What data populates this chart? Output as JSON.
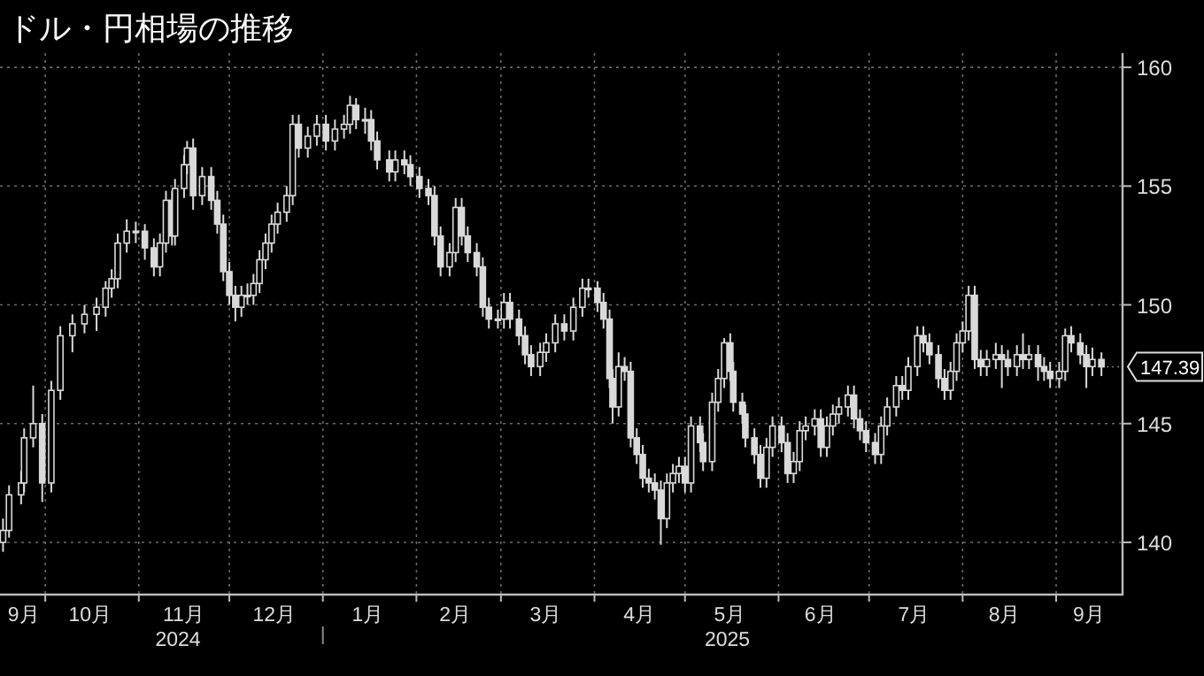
{
  "chart_data": {
    "type": "candlestick",
    "title": "ドル・円相場の推移",
    "color": "#d9d9d9",
    "x": [
      "2024-09-17",
      "2024-09-19",
      "2024-09-23",
      "2024-09-24",
      "2024-09-27",
      "2024-09-30",
      "2024-10-03",
      "2024-10-06",
      "2024-10-10",
      "2024-10-14",
      "2024-10-18",
      "2024-10-21",
      "2024-10-23",
      "2024-10-25",
      "2024-10-28",
      "2024-10-31",
      "2024-11-03",
      "2024-11-06",
      "2024-11-08",
      "2024-11-10",
      "2024-11-12",
      "2024-11-13",
      "2024-11-16",
      "2024-11-17",
      "2024-11-19",
      "2024-11-22",
      "2024-11-25",
      "2024-11-27",
      "2024-11-29",
      "2024-12-01",
      "2024-12-03",
      "2024-12-05",
      "2024-12-07",
      "2024-12-09",
      "2024-12-11",
      "2024-12-13",
      "2024-12-15",
      "2024-12-17",
      "2024-12-20",
      "2024-12-22",
      "2024-12-24",
      "2024-12-27",
      "2024-12-30",
      "2025-01-02",
      "2025-01-05",
      "2025-01-08",
      "2025-01-10",
      "2025-01-12",
      "2025-01-15",
      "2025-01-17",
      "2025-01-19",
      "2025-01-23",
      "2025-01-25",
      "2025-01-28",
      "2025-01-30",
      "2025-02-02",
      "2025-02-05",
      "2025-02-07",
      "2025-02-09",
      "2025-02-12",
      "2025-02-14",
      "2025-02-16",
      "2025-02-18",
      "2025-02-21",
      "2025-02-23",
      "2025-02-25",
      "2025-02-28",
      "2025-03-02",
      "2025-03-04",
      "2025-03-07",
      "2025-03-09",
      "2025-03-11",
      "2025-03-14",
      "2025-03-16",
      "2025-03-19",
      "2025-03-22",
      "2025-03-25",
      "2025-03-28",
      "2025-03-30",
      "2025-04-02",
      "2025-04-04",
      "2025-04-06",
      "2025-04-07",
      "2025-04-09",
      "2025-04-11",
      "2025-04-13",
      "2025-04-15",
      "2025-04-17",
      "2025-04-19",
      "2025-04-21",
      "2025-04-23",
      "2025-04-25",
      "2025-04-27",
      "2025-04-29",
      "2025-05-01",
      "2025-05-03",
      "2025-05-06",
      "2025-05-07",
      "2025-05-10",
      "2025-05-12",
      "2025-05-14",
      "2025-05-16",
      "2025-05-17",
      "2025-05-20",
      "2025-05-21",
      "2025-05-24",
      "2025-05-26",
      "2025-05-28",
      "2025-05-30",
      "2025-06-02",
      "2025-06-04",
      "2025-06-06",
      "2025-06-08",
      "2025-06-10",
      "2025-06-13",
      "2025-06-15",
      "2025-06-17",
      "2025-06-19",
      "2025-06-21",
      "2025-06-24",
      "2025-06-26",
      "2025-06-28",
      "2025-06-30",
      "2025-07-03",
      "2025-07-05",
      "2025-07-07",
      "2025-07-10",
      "2025-07-12",
      "2025-07-14",
      "2025-07-17",
      "2025-07-19",
      "2025-07-21",
      "2025-07-24",
      "2025-07-26",
      "2025-07-28",
      "2025-07-30",
      "2025-08-01",
      "2025-08-03",
      "2025-08-05",
      "2025-08-07",
      "2025-08-09",
      "2025-08-12",
      "2025-08-14",
      "2025-08-16",
      "2025-08-19",
      "2025-08-21",
      "2025-08-23",
      "2025-08-26",
      "2025-08-28",
      "2025-08-30",
      "2025-09-02",
      "2025-09-04",
      "2025-09-06",
      "2025-09-09",
      "2025-09-11",
      "2025-09-13",
      "2025-09-16"
    ],
    "ohlc": [
      [
        140.0,
        141.0,
        139.6,
        140.5
      ],
      [
        140.5,
        142.4,
        140.2,
        142.0
      ],
      [
        142.0,
        143.0,
        141.6,
        142.5
      ],
      [
        142.5,
        144.8,
        142.1,
        144.4
      ],
      [
        144.4,
        146.6,
        144.0,
        145.0
      ],
      [
        145.0,
        145.4,
        141.7,
        142.5
      ],
      [
        142.5,
        146.8,
        142.1,
        146.4
      ],
      [
        146.4,
        149.1,
        146.0,
        148.7
      ],
      [
        148.7,
        149.6,
        148.0,
        149.2
      ],
      [
        149.2,
        150.0,
        148.8,
        149.6
      ],
      [
        149.6,
        150.3,
        148.9,
        149.9
      ],
      [
        149.9,
        151.0,
        149.5,
        150.7
      ],
      [
        150.7,
        151.5,
        150.3,
        151.1
      ],
      [
        151.1,
        153.0,
        150.7,
        152.6
      ],
      [
        152.6,
        153.6,
        152.2,
        153.1
      ],
      [
        153.1,
        153.5,
        152.6,
        153.1
      ],
      [
        153.1,
        153.4,
        151.9,
        152.4
      ],
      [
        152.4,
        152.8,
        151.2,
        151.6
      ],
      [
        151.6,
        153.0,
        151.2,
        152.6
      ],
      [
        152.6,
        154.8,
        152.2,
        154.4
      ],
      [
        154.4,
        154.8,
        152.5,
        152.9
      ],
      [
        152.9,
        155.3,
        152.5,
        154.9
      ],
      [
        154.9,
        156.3,
        154.5,
        155.9
      ],
      [
        155.9,
        156.9,
        155.5,
        156.6
      ],
      [
        156.6,
        157.0,
        154.0,
        154.6
      ],
      [
        154.6,
        155.8,
        154.2,
        155.4
      ],
      [
        155.4,
        155.8,
        154.0,
        154.4
      ],
      [
        154.4,
        154.8,
        153.0,
        153.4
      ],
      [
        153.4,
        153.8,
        151.0,
        151.4
      ],
      [
        151.4,
        151.8,
        150.0,
        150.4
      ],
      [
        150.4,
        150.8,
        149.3,
        149.9
      ],
      [
        149.9,
        150.8,
        149.5,
        150.4
      ],
      [
        150.4,
        150.9,
        150.0,
        150.4
      ],
      [
        150.4,
        151.3,
        150.0,
        150.9
      ],
      [
        150.9,
        152.3,
        150.5,
        151.9
      ],
      [
        151.9,
        153.0,
        151.5,
        152.6
      ],
      [
        152.6,
        153.8,
        152.2,
        153.4
      ],
      [
        153.4,
        154.3,
        153.0,
        153.9
      ],
      [
        153.9,
        155.0,
        153.5,
        154.6
      ],
      [
        154.6,
        158.0,
        154.2,
        157.6
      ],
      [
        157.6,
        158.0,
        156.2,
        156.6
      ],
      [
        156.6,
        157.5,
        156.2,
        157.1
      ],
      [
        157.1,
        158.0,
        156.7,
        157.6
      ],
      [
        157.6,
        158.0,
        156.5,
        156.9
      ],
      [
        156.9,
        157.8,
        156.5,
        157.4
      ],
      [
        157.4,
        158.0,
        157.0,
        157.6
      ],
      [
        157.6,
        158.8,
        157.2,
        158.4
      ],
      [
        158.4,
        158.7,
        157.4,
        157.8
      ],
      [
        157.8,
        158.3,
        157.2,
        157.8
      ],
      [
        157.8,
        158.2,
        156.5,
        156.9
      ],
      [
        156.9,
        157.3,
        155.7,
        156.1
      ],
      [
        156.1,
        156.5,
        155.2,
        155.6
      ],
      [
        155.6,
        156.5,
        155.2,
        156.1
      ],
      [
        156.1,
        156.5,
        155.5,
        155.9
      ],
      [
        155.9,
        156.3,
        155.0,
        155.4
      ],
      [
        155.4,
        155.8,
        154.5,
        154.9
      ],
      [
        154.9,
        155.3,
        154.2,
        154.6
      ],
      [
        154.6,
        155.0,
        152.5,
        152.9
      ],
      [
        152.9,
        153.3,
        151.2,
        151.6
      ],
      [
        151.6,
        152.6,
        151.2,
        152.2
      ],
      [
        152.2,
        154.5,
        151.8,
        154.1
      ],
      [
        154.1,
        154.5,
        152.5,
        152.9
      ],
      [
        152.9,
        153.3,
        151.8,
        152.2
      ],
      [
        152.2,
        152.6,
        151.2,
        151.6
      ],
      [
        151.6,
        152.0,
        149.5,
        149.9
      ],
      [
        149.9,
        150.3,
        149.0,
        149.4
      ],
      [
        149.4,
        149.8,
        149.0,
        149.4
      ],
      [
        149.4,
        150.5,
        149.0,
        150.1
      ],
      [
        150.1,
        150.5,
        149.0,
        149.4
      ],
      [
        149.4,
        149.8,
        148.3,
        148.7
      ],
      [
        148.7,
        149.1,
        147.5,
        147.9
      ],
      [
        147.9,
        148.3,
        147.0,
        147.4
      ],
      [
        147.4,
        148.4,
        147.0,
        148.0
      ],
      [
        148.0,
        148.8,
        147.6,
        148.4
      ],
      [
        148.4,
        149.6,
        148.0,
        149.2
      ],
      [
        149.2,
        149.6,
        148.5,
        148.9
      ],
      [
        148.9,
        150.3,
        148.5,
        149.9
      ],
      [
        149.9,
        151.1,
        149.5,
        150.7
      ],
      [
        150.7,
        151.1,
        150.3,
        150.7
      ],
      [
        150.7,
        151.0,
        149.7,
        150.1
      ],
      [
        150.1,
        150.5,
        149.0,
        149.4
      ],
      [
        149.4,
        149.8,
        146.5,
        146.9
      ],
      [
        146.9,
        147.3,
        145.0,
        145.7
      ],
      [
        145.7,
        148.0,
        145.3,
        147.4
      ],
      [
        147.4,
        147.8,
        146.8,
        147.2
      ],
      [
        147.2,
        147.6,
        144.0,
        144.4
      ],
      [
        144.4,
        144.8,
        143.3,
        143.7
      ],
      [
        143.7,
        144.1,
        142.3,
        142.7
      ],
      [
        142.7,
        143.1,
        142.1,
        142.5
      ],
      [
        142.5,
        142.9,
        141.8,
        142.2
      ],
      [
        142.2,
        142.6,
        139.9,
        141.0
      ],
      [
        141.0,
        142.9,
        140.6,
        142.5
      ],
      [
        142.5,
        143.3,
        142.1,
        142.9
      ],
      [
        142.9,
        143.6,
        142.5,
        143.2
      ],
      [
        143.2,
        143.6,
        142.1,
        142.5
      ],
      [
        142.5,
        145.3,
        142.1,
        144.9
      ],
      [
        144.9,
        145.3,
        143.8,
        144.2
      ],
      [
        144.2,
        144.6,
        143.0,
        143.4
      ],
      [
        143.4,
        146.3,
        143.0,
        145.9
      ],
      [
        145.9,
        147.3,
        145.5,
        146.9
      ],
      [
        146.9,
        148.6,
        146.5,
        148.4
      ],
      [
        148.4,
        148.8,
        146.8,
        147.2
      ],
      [
        147.2,
        147.6,
        145.5,
        145.9
      ],
      [
        145.9,
        146.3,
        145.0,
        145.4
      ],
      [
        145.4,
        145.8,
        144.0,
        144.4
      ],
      [
        144.4,
        144.8,
        143.3,
        143.7
      ],
      [
        143.7,
        144.1,
        142.3,
        142.7
      ],
      [
        142.7,
        144.4,
        142.3,
        144.0
      ],
      [
        144.0,
        145.3,
        143.6,
        144.9
      ],
      [
        144.9,
        145.3,
        143.8,
        144.2
      ],
      [
        144.2,
        144.6,
        142.5,
        142.9
      ],
      [
        142.9,
        143.8,
        142.5,
        143.4
      ],
      [
        143.4,
        145.1,
        143.0,
        144.7
      ],
      [
        144.7,
        145.3,
        144.3,
        144.9
      ],
      [
        144.9,
        145.6,
        144.5,
        145.2
      ],
      [
        145.2,
        145.6,
        143.6,
        144.0
      ],
      [
        144.0,
        145.3,
        143.6,
        144.9
      ],
      [
        144.9,
        145.8,
        144.5,
        145.4
      ],
      [
        145.4,
        146.1,
        145.0,
        145.7
      ],
      [
        145.7,
        146.6,
        145.3,
        146.2
      ],
      [
        146.2,
        146.6,
        144.8,
        145.2
      ],
      [
        145.2,
        145.6,
        144.3,
        144.7
      ],
      [
        144.7,
        145.1,
        143.8,
        144.2
      ],
      [
        144.2,
        144.6,
        143.3,
        143.7
      ],
      [
        143.7,
        145.3,
        143.3,
        144.9
      ],
      [
        144.9,
        146.1,
        144.5,
        145.7
      ],
      [
        145.7,
        147.0,
        145.3,
        146.6
      ],
      [
        146.6,
        147.0,
        146.0,
        146.4
      ],
      [
        146.4,
        147.8,
        146.0,
        147.4
      ],
      [
        147.4,
        149.1,
        147.0,
        148.7
      ],
      [
        148.7,
        149.1,
        148.0,
        148.4
      ],
      [
        148.4,
        148.8,
        147.5,
        147.9
      ],
      [
        147.9,
        148.3,
        146.5,
        146.9
      ],
      [
        146.9,
        147.3,
        146.0,
        146.4
      ],
      [
        146.4,
        147.6,
        146.0,
        147.2
      ],
      [
        147.2,
        148.8,
        146.8,
        148.4
      ],
      [
        148.4,
        149.3,
        148.0,
        148.9
      ],
      [
        148.9,
        150.8,
        148.5,
        150.4
      ],
      [
        150.4,
        150.8,
        147.3,
        147.7
      ],
      [
        147.7,
        148.1,
        147.0,
        147.4
      ],
      [
        147.4,
        148.1,
        147.0,
        147.7
      ],
      [
        147.7,
        148.4,
        147.3,
        147.9
      ],
      [
        147.9,
        148.3,
        146.5,
        147.7
      ],
      [
        147.7,
        148.1,
        147.0,
        147.4
      ],
      [
        147.4,
        148.3,
        147.0,
        147.9
      ],
      [
        147.9,
        148.8,
        147.3,
        147.7
      ],
      [
        147.7,
        148.3,
        147.3,
        147.9
      ],
      [
        147.9,
        148.3,
        146.8,
        147.4
      ],
      [
        147.4,
        147.8,
        146.8,
        147.2
      ],
      [
        147.2,
        147.6,
        146.5,
        146.9
      ],
      [
        146.9,
        147.6,
        146.5,
        147.2
      ],
      [
        147.2,
        149.0,
        146.8,
        148.7
      ],
      [
        148.7,
        149.1,
        148.0,
        148.4
      ],
      [
        148.4,
        148.8,
        147.5,
        147.9
      ],
      [
        147.9,
        148.3,
        146.5,
        147.4
      ],
      [
        147.4,
        148.2,
        147.0,
        147.7
      ],
      [
        147.7,
        148.0,
        147.0,
        147.39
      ]
    ],
    "xlim": [
      "2024-09-16",
      "2025-09-23"
    ],
    "xticks": [
      {
        "value": "2024-10-01",
        "label": null
      },
      {
        "value": "2024-11-01",
        "label": null
      },
      {
        "value": "2024-12-01",
        "label": null
      },
      {
        "value": "2025-01-01",
        "label": null
      },
      {
        "value": "2025-02-01",
        "label": null
      },
      {
        "value": "2025-03-01",
        "label": null
      },
      {
        "value": "2025-04-01",
        "label": null
      },
      {
        "value": "2025-05-01",
        "label": null
      },
      {
        "value": "2025-06-01",
        "label": null
      },
      {
        "value": "2025-07-01",
        "label": null
      },
      {
        "value": "2025-08-01",
        "label": null
      },
      {
        "value": "2025-09-01",
        "label": null
      },
      {
        "value": "2024-09-24",
        "label": "9月"
      },
      {
        "value": "2024-10-16",
        "label": "10月"
      },
      {
        "value": "2024-11-16",
        "label": "11月"
      },
      {
        "value": "2024-12-16",
        "label": "12月"
      },
      {
        "value": "2025-01-16",
        "label": "1月"
      },
      {
        "value": "2025-02-14",
        "label": "2月"
      },
      {
        "value": "2025-03-16",
        "label": "3月"
      },
      {
        "value": "2025-04-16",
        "label": "4月"
      },
      {
        "value": "2025-05-16",
        "label": "5月"
      },
      {
        "value": "2025-06-15",
        "label": "6月"
      },
      {
        "value": "2025-07-16",
        "label": "7月"
      },
      {
        "value": "2025-08-15",
        "label": "8月"
      },
      {
        "value": "2025-09-12",
        "label": "9月"
      }
    ],
    "x2lim": [
      "2024-09-16",
      "2025-09-23"
    ],
    "x2ticks": [
      {
        "value": "2024-11-14",
        "label": "2024"
      },
      {
        "value": "2025-01-01",
        "label": null
      },
      {
        "value": "2025-05-15",
        "label": "2025"
      }
    ],
    "ylim": [
      137.8,
      160.6
    ],
    "yticks": [
      140,
      145,
      150,
      155,
      160
    ],
    "grid": true,
    "annotations": [
      {
        "text": "147.39",
        "x": "2025-09-16",
        "y": 147.39
      }
    ]
  }
}
